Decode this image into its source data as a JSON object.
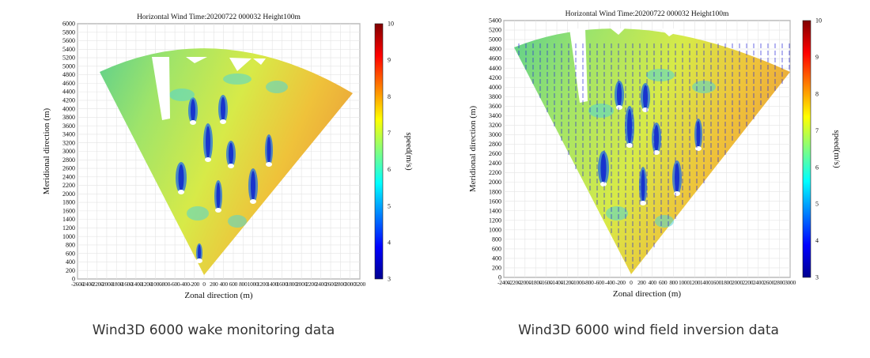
{
  "chart_data": [
    {
      "type": "heatmap",
      "title": "Horizontal Wind  Time:20200722 000032 Height100m",
      "xlabel": "Zonal direction (m)",
      "ylabel": "Meridional direction (m)",
      "colorbar_label": "speed(m/s)",
      "colorbar_range": [
        3,
        10
      ],
      "colorbar_ticks": [
        "3",
        "4",
        "5",
        "6",
        "7",
        "8",
        "9",
        "10"
      ],
      "ylim": [
        0,
        6000
      ],
      "y_ticks": [
        "0",
        "200",
        "400",
        "600",
        "800",
        "1000",
        "1200",
        "1400",
        "1600",
        "1800",
        "2000",
        "2200",
        "2400",
        "2600",
        "2800",
        "3000",
        "3200",
        "3400",
        "3600",
        "3800",
        "4000",
        "4200",
        "4400",
        "4600",
        "4800",
        "5000",
        "5200",
        "5400",
        "5600",
        "5800",
        "6000"
      ],
      "x_ticks": [
        "-2600",
        "-2400",
        "-2200",
        "-2000",
        "-1800",
        "-1600",
        "-1400",
        "-1200",
        "-1000",
        "-800",
        "-600",
        "-400",
        "-200",
        "0",
        "200",
        "400",
        "600",
        "800",
        "1000",
        "1200",
        "1400",
        "1600",
        "1800",
        "2000",
        "2200",
        "2400",
        "2600",
        "2800",
        "3000",
        "3200"
      ],
      "colormap": [
        "#00008f",
        "#0000ff",
        "#0080ff",
        "#00ffff",
        "#80ff80",
        "#ffff00",
        "#ff8000",
        "#ff0000",
        "#800000"
      ]
    },
    {
      "type": "heatmap",
      "title": "Horizontal Wind  Time:20200722 000032 Height100m",
      "xlabel": "Zonal direction (m)",
      "ylabel": "Meridional direction (m)",
      "colorbar_label": "speed(m/s)",
      "colorbar_range": [
        3,
        10
      ],
      "colorbar_ticks": [
        "3",
        "4",
        "5",
        "6",
        "7",
        "8",
        "9",
        "10"
      ],
      "ylim": [
        0,
        5400
      ],
      "y_ticks": [
        "0",
        "200",
        "400",
        "600",
        "800",
        "1000",
        "1200",
        "1400",
        "1600",
        "1800",
        "2000",
        "2200",
        "2400",
        "2600",
        "2800",
        "3000",
        "3200",
        "3400",
        "3600",
        "3800",
        "4000",
        "4200",
        "4400",
        "4600",
        "4800",
        "5000",
        "5200",
        "5400"
      ],
      "x_ticks": [
        "-2400",
        "-2200",
        "-2000",
        "-1800",
        "-1600",
        "-1400",
        "-1200",
        "-1000",
        "-800",
        "-600",
        "-400",
        "-200",
        "0",
        "200",
        "400",
        "600",
        "800",
        "1000",
        "1200",
        "1400",
        "1600",
        "1800",
        "2000",
        "2200",
        "2400",
        "2600",
        "2800",
        "3000"
      ],
      "colormap": [
        "#00008f",
        "#0000ff",
        "#0080ff",
        "#00ffff",
        "#80ff80",
        "#ffff00",
        "#ff8000",
        "#ff0000",
        "#800000"
      ]
    }
  ],
  "captions": {
    "left": "Wind3D 6000 wake monitoring data",
    "right": "Wind3D 6000 wind field inversion data"
  }
}
